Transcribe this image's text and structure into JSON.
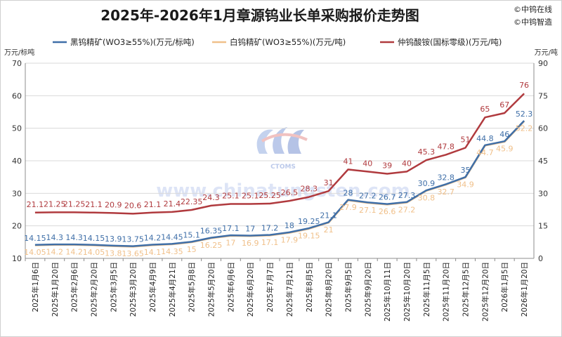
{
  "title": "2025年-2026年1月章源钨业长单采购报价走势图",
  "brand": [
    "©中钨在线",
    "©中钨智造"
  ],
  "watermark": {
    "logo_text": "CTOMS",
    "url_text": "www.chinatungsten.com"
  },
  "colors": {
    "black": "#3f6fa8",
    "white": "#f0c08a",
    "apt": "#b03a3e"
  },
  "chart_data": {
    "type": "line",
    "title": "2025年-2026年1月章源钨业长单采购报价走势图",
    "xlabel": "",
    "ylabel_left": "万元/标吨",
    "ylabel_right": "万元/吨",
    "ylim_left": [
      10,
      70
    ],
    "yticks_left": [
      10,
      20,
      30,
      40,
      50,
      60,
      70
    ],
    "ylim_right": [
      0,
      90
    ],
    "yticks_right": [
      0,
      15,
      30,
      45,
      60,
      75,
      90
    ],
    "grid": true,
    "legend_position": "top",
    "categories": [
      "2025年1月6日",
      "2025年1月20日",
      "2025年2月6日",
      "2025年2月20日",
      "2025年3月5日",
      "2025年3月20日",
      "2025年4月9日",
      "2025年4月21日",
      "2025年5月8日",
      "2025年5月20日",
      "2025年6月6日",
      "2025年6月20日",
      "2025年7月7日",
      "2025年7月21日",
      "2025年8月5日",
      "2025年8月20日",
      "2025年9月5日",
      "2025年9月20日",
      "2025年10月11日",
      "2025年10月20日",
      "2025年11月5日",
      "2025年11月20日",
      "2025年12月5日",
      "2025年12月20日",
      "2026年1月5日",
      "2026年1月20日"
    ],
    "series": [
      {
        "name": "黑钨精矿(WO3≥55%)(万元/标吨)",
        "axis": "left",
        "color": "#3f6fa8",
        "values": [
          14.15,
          14.3,
          14.3,
          14.15,
          13.9,
          13.75,
          14.2,
          14.45,
          15.1,
          16.35,
          17.1,
          17,
          17.2,
          18,
          19.25,
          21.1,
          28,
          27.2,
          26.7,
          27.3,
          30.9,
          32.8,
          35,
          44.8,
          46,
          52.3
        ],
        "labels": [
          "14.15",
          "14.3",
          "14.3",
          "14.15",
          "13.9",
          "13.75",
          "14.2",
          "14.45",
          "15.1",
          "16.35",
          "17.1",
          "17",
          "17.2",
          "18",
          "19.25",
          "21.1",
          "28",
          "27.2",
          "26.7",
          "27.3",
          "30.9",
          "32.8",
          "35",
          "44.8",
          "46",
          "52.3"
        ]
      },
      {
        "name": "白钨精矿(WO3≥55%)(万元/吨)",
        "axis": "left",
        "color": "#f0c08a",
        "values": [
          14.05,
          14.2,
          14.2,
          14.05,
          13.8,
          13.65,
          14.1,
          14.35,
          15,
          16.25,
          17,
          16.9,
          17.1,
          17.9,
          19.15,
          21,
          27.9,
          27.1,
          26.6,
          27.2,
          30.8,
          32.7,
          34.9,
          44.7,
          45.9,
          52.2
        ],
        "labels": [
          "14.05",
          "14.2",
          "14.2",
          "14.05",
          "13.8",
          "13.65",
          "14.1",
          "14.35",
          "15",
          "16.25",
          "17",
          "16.9",
          "17.1",
          "17.9",
          "19.15",
          "21",
          "27.9",
          "27.1",
          "26.6",
          "27.2",
          "30.8",
          "32.7",
          "34.9",
          "44.7",
          "45.9",
          "52.2"
        ]
      },
      {
        "name": "仲钨酸铵(国标零级)(万元/吨)",
        "axis": "right",
        "color": "#b03a3e",
        "values": [
          21.1,
          21.25,
          21.25,
          21.1,
          20.9,
          20.6,
          21.1,
          21.4,
          22.35,
          24.3,
          25.1,
          25.1,
          25.25,
          26.5,
          28.3,
          31,
          41,
          40,
          39,
          40,
          45.3,
          47.8,
          51,
          65,
          67,
          76
        ],
        "labels": [
          "21.1",
          "21.25",
          "21.25",
          "21.1",
          "20.9",
          "20.6",
          "21.1",
          "21.4",
          "22.35",
          "24.3",
          "25.1",
          "25.1",
          "25.25",
          "26.5",
          "28.3",
          "31",
          "41",
          "40",
          "39",
          "40",
          "45.3",
          "47.8",
          "51",
          "65",
          "67",
          "76"
        ]
      }
    ]
  }
}
